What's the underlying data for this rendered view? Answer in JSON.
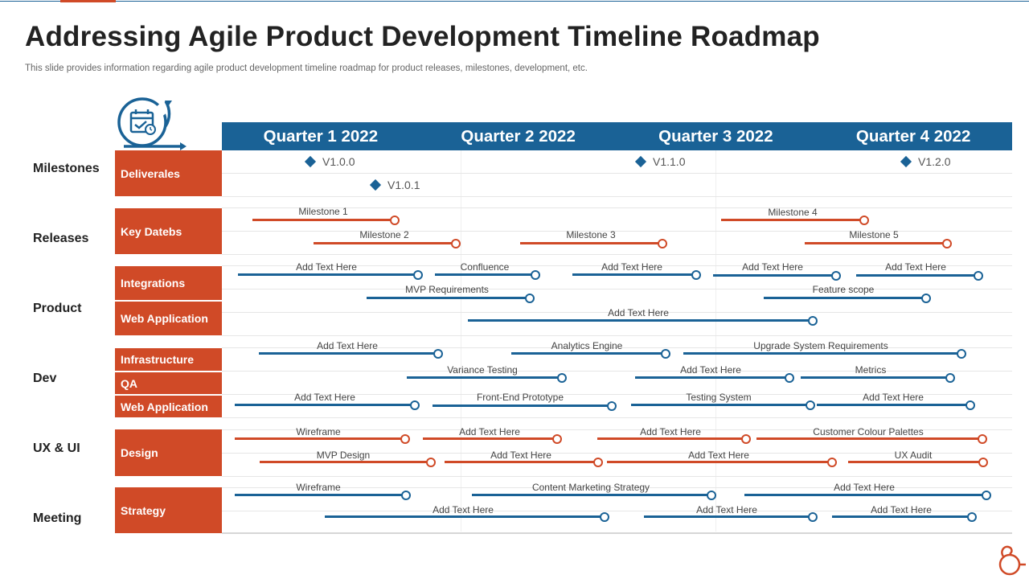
{
  "title": "Addressing Agile Product Development Timeline Roadmap",
  "subtitle": "This slide provides information regarding agile product development timeline roadmap for product releases, milestones, development, etc.",
  "colors": {
    "blue": "#1a6296",
    "orange": "#d04a27",
    "text": "#222222",
    "subtext": "#666666"
  },
  "icons": {
    "header_icon": "calendar-cycle-icon",
    "logo_icon": "brand-logo-icon"
  },
  "quarters": [
    "Quarter 1 2022",
    "Quarter 2 2022",
    "Quarter 3 2022",
    "Quarter 4 2022"
  ],
  "groups": [
    "Milestones",
    "Releases",
    "Product",
    "Dev",
    "UX & UI",
    "Meeting"
  ],
  "categories": [
    "Deliverales",
    "Key Datebs",
    "Integrations",
    "Web Application",
    "Infrastructure",
    "QA",
    "Web Application",
    "Design",
    "Strategy"
  ],
  "markers": [
    "V1.0.0",
    "V1.1.0",
    "V1.2.0",
    "V1.0.1"
  ],
  "bars": [
    {
      "label": "Milestone 1",
      "color": "orange"
    },
    {
      "label": "Milestone 4",
      "color": "orange"
    },
    {
      "label": "Milestone 2",
      "color": "orange"
    },
    {
      "label": "Milestone 3",
      "color": "orange"
    },
    {
      "label": "Milestone 5",
      "color": "orange"
    },
    {
      "label": "Add Text Here",
      "color": "blue"
    },
    {
      "label": "Confluence",
      "color": "blue"
    },
    {
      "label": "Add Text Here",
      "color": "blue"
    },
    {
      "label": "Add Text Here",
      "color": "blue"
    },
    {
      "label": "Add Text Here",
      "color": "blue"
    },
    {
      "label": "MVP  Requirements",
      "color": "blue"
    },
    {
      "label": "Feature scope",
      "color": "blue"
    },
    {
      "label": "Add Text Here",
      "color": "blue"
    },
    {
      "label": "Add Text Here",
      "color": "blue"
    },
    {
      "label": "Analytics Engine",
      "color": "blue"
    },
    {
      "label": "Upgrade System Requirements",
      "color": "blue"
    },
    {
      "label": "Variance Testing",
      "color": "blue"
    },
    {
      "label": "Add Text Here",
      "color": "blue"
    },
    {
      "label": "Metrics",
      "color": "blue"
    },
    {
      "label": "Add Text Here",
      "color": "blue"
    },
    {
      "label": "Front-End Prototype",
      "color": "blue"
    },
    {
      "label": "Testing System",
      "color": "blue"
    },
    {
      "label": "Add Text Here",
      "color": "blue"
    },
    {
      "label": "Wireframe",
      "color": "orange"
    },
    {
      "label": "Add Text Here",
      "color": "orange"
    },
    {
      "label": "Add Text Here",
      "color": "orange"
    },
    {
      "label": "Customer Colour Palettes",
      "color": "orange"
    },
    {
      "label": "MVP  Design",
      "color": "orange"
    },
    {
      "label": "Add Text Here",
      "color": "orange"
    },
    {
      "label": "Add Text Here",
      "color": "orange"
    },
    {
      "label": "UX Audit",
      "color": "orange"
    },
    {
      "label": "Wireframe",
      "color": "blue"
    },
    {
      "label": "Content Marketing Strategy",
      "color": "blue"
    },
    {
      "label": "Add Text Here",
      "color": "blue"
    },
    {
      "label": "Add Text Here",
      "color": "blue"
    },
    {
      "label": "Add Text Here",
      "color": "blue"
    },
    {
      "label": "Add Text Here",
      "color": "blue"
    }
  ]
}
